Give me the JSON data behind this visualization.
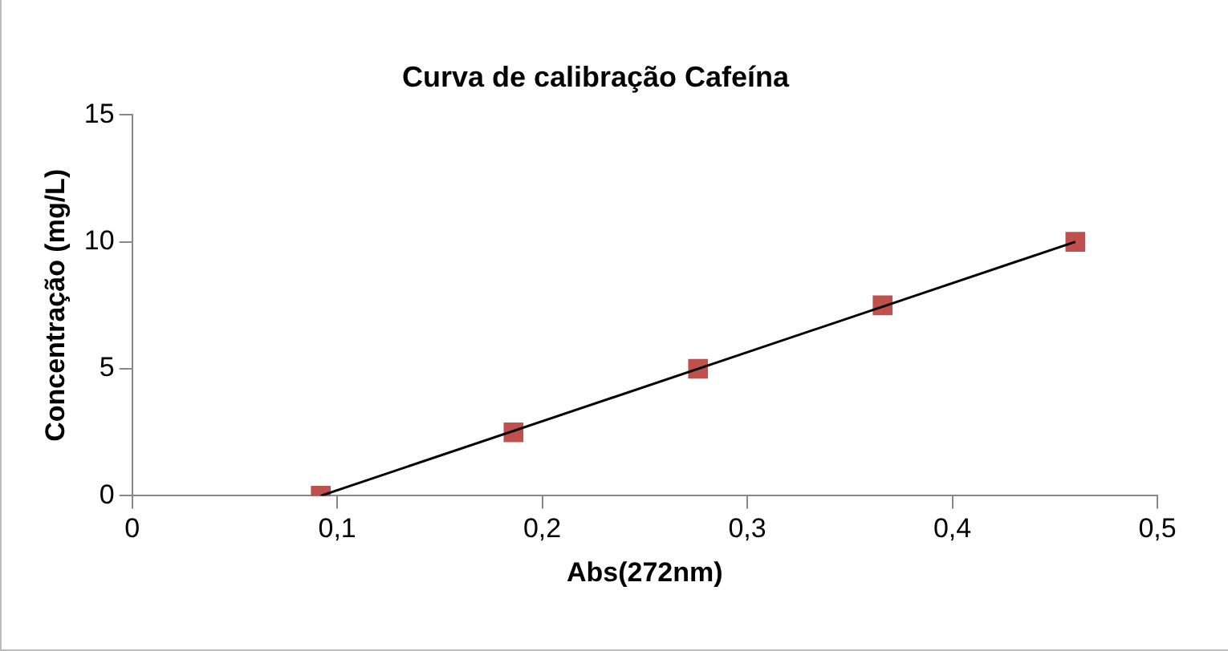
{
  "chart_data": {
    "type": "scatter",
    "title": "Curva de calibração Cafeína",
    "xlabel": "Abs(272nm)",
    "ylabel": "Concentração (mg/L)",
    "x": [
      0.092,
      0.186,
      0.276,
      0.366,
      0.46
    ],
    "series": [
      {
        "color": "#c0504d",
        "values": [
          0,
          2.5,
          5,
          7.5,
          10
        ],
        "marker": "square"
      },
      {
        "type": "line",
        "color": "#000000",
        "x": [
          0.092,
          0.46
        ],
        "values": [
          0,
          10
        ],
        "marker": "none"
      }
    ],
    "xlim": [
      0,
      0.5
    ],
    "xticks": [
      0,
      {
        "value": 0.1,
        "label": "0,1"
      },
      {
        "value": 0.2,
        "label": "0,2"
      },
      {
        "value": 0.3,
        "label": "0,3"
      },
      {
        "value": 0.4,
        "label": "0,4"
      },
      {
        "value": 0.5,
        "label": "0,5"
      }
    ],
    "ylim": [
      0,
      15
    ],
    "yticks": [
      0,
      5,
      10,
      15
    ],
    "grid": false,
    "legend": false
  }
}
